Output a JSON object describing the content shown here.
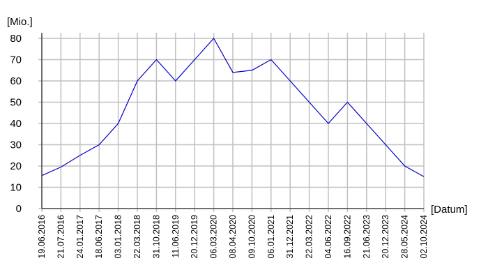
{
  "chart_data": {
    "type": "line",
    "y_label": "[Mio.]",
    "x_label": "[Datum]",
    "categories": [
      "19.06.2016",
      "21.07.2016",
      "24.01.2017",
      "18.06.2017",
      "03.01.2018",
      "22.03.2018",
      "31.10.2018",
      "11.06.2019",
      "20.12.2019",
      "06.03.2020",
      "08.04.2020",
      "09.10.2020",
      "06.01.2021",
      "31.12.2021",
      "22.03.2022",
      "04.06.2022",
      "16.09.2022",
      "21.06.2023",
      "20.12.2023",
      "28.05.2024",
      "02.10.2024"
    ],
    "values": [
      15.5,
      19.5,
      25,
      30,
      40,
      60,
      70,
      60,
      70,
      80,
      64,
      65,
      70,
      60,
      50,
      40,
      50,
      40,
      30,
      20,
      15
    ],
    "color": "#0000c8",
    "ylim": [
      0,
      80
    ],
    "yticks": [
      0,
      10,
      20,
      30,
      40,
      50,
      60,
      70,
      80
    ],
    "grid": true
  }
}
